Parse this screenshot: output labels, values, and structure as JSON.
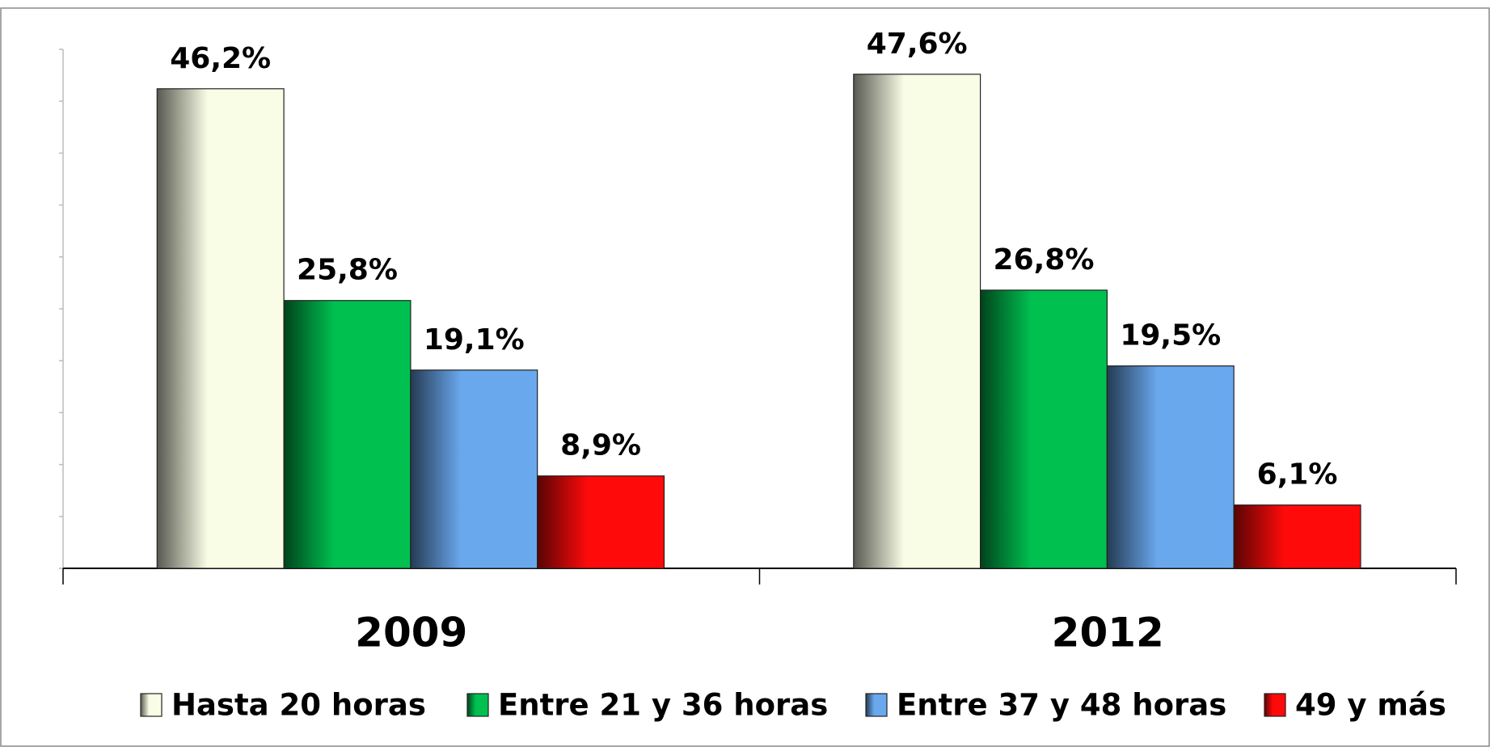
{
  "chart_data": {
    "type": "bar",
    "categories": [
      "2009",
      "2012"
    ],
    "series": [
      {
        "name": "Hasta 20 horas",
        "color": "#fafde6",
        "values": [
          46.2,
          47.6
        ],
        "value_labels": [
          "46,2%",
          "47,6%"
        ]
      },
      {
        "name": "Entre 21 y 36 horas",
        "color": "#00c050",
        "values": [
          25.8,
          26.8
        ],
        "value_labels": [
          "25,8%",
          "26,8%"
        ]
      },
      {
        "name": "Entre 37 y 48 horas",
        "color": "#6aa8ee",
        "values": [
          19.1,
          19.5
        ],
        "value_labels": [
          "19,1%",
          "19,5%"
        ]
      },
      {
        "name": "49 y más",
        "color": "#ff0a0a",
        "values": [
          8.9,
          6.1
        ],
        "value_labels": [
          "8,9%",
          "6,1%"
        ]
      }
    ],
    "ylim": [
      0,
      50
    ],
    "yticks": [
      0,
      5,
      10,
      15,
      20,
      25,
      30,
      35,
      40,
      45,
      50
    ],
    "legend": "bottom"
  }
}
